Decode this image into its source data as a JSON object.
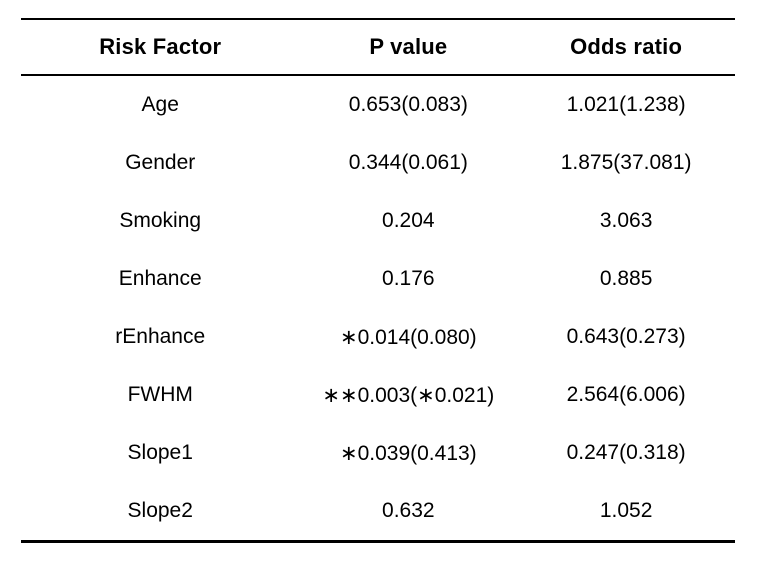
{
  "chart_data": {
    "type": "table",
    "columns": [
      "Risk Factor",
      "P value",
      "Odds ratio"
    ],
    "rows": [
      [
        "Age",
        "0.653(0.083)",
        "1.021(1.238)"
      ],
      [
        "Gender",
        "0.344(0.061)",
        "1.875(37.081)"
      ],
      [
        "Smoking",
        "0.204",
        "3.063"
      ],
      [
        "Enhance",
        "0.176",
        "0.885"
      ],
      [
        "rEnhance",
        "∗0.014(0.080)",
        "0.643(0.273)"
      ],
      [
        "FWHM",
        "∗∗0.003(∗0.021)",
        "2.564(6.006)"
      ],
      [
        "Slope1",
        "∗0.039(0.413)",
        "0.247(0.318)"
      ],
      [
        "Slope2",
        "0.632",
        "1.052"
      ]
    ]
  },
  "colors": {
    "text": "#000000",
    "rules": "#000000",
    "background": "#ffffff"
  }
}
